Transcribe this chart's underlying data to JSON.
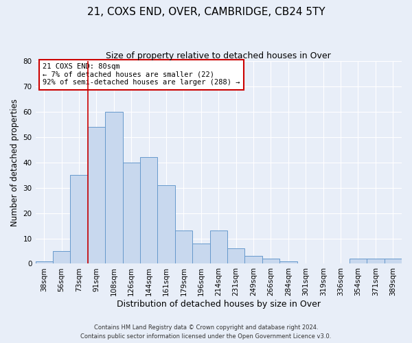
{
  "title1": "21, COXS END, OVER, CAMBRIDGE, CB24 5TY",
  "title2": "Size of property relative to detached houses in Over",
  "xlabel": "Distribution of detached houses by size in Over",
  "ylabel": "Number of detached properties",
  "categories": [
    "38sqm",
    "56sqm",
    "73sqm",
    "91sqm",
    "108sqm",
    "126sqm",
    "144sqm",
    "161sqm",
    "179sqm",
    "196sqm",
    "214sqm",
    "231sqm",
    "249sqm",
    "266sqm",
    "284sqm",
    "301sqm",
    "319sqm",
    "336sqm",
    "354sqm",
    "371sqm",
    "389sqm"
  ],
  "values": [
    1,
    5,
    35,
    54,
    60,
    40,
    42,
    31,
    13,
    8,
    13,
    6,
    3,
    2,
    1,
    0,
    0,
    0,
    2,
    2,
    2
  ],
  "bar_color": "#c8d8ee",
  "bar_edge_color": "#6699cc",
  "bar_width": 1.0,
  "vline_x": 2.5,
  "vline_color": "#cc0000",
  "ylim": [
    0,
    80
  ],
  "yticks": [
    0,
    10,
    20,
    30,
    40,
    50,
    60,
    70,
    80
  ],
  "annotation_title": "21 COXS END: 80sqm",
  "annotation_line1": "← 7% of detached houses are smaller (22)",
  "annotation_line2": "92% of semi-detached houses are larger (288) →",
  "annotation_box_color": "#ffffff",
  "annotation_box_edge_color": "#cc0000",
  "footer1": "Contains HM Land Registry data © Crown copyright and database right 2024.",
  "footer2": "Contains public sector information licensed under the Open Government Licence v3.0.",
  "background_color": "#e8eef8",
  "grid_color": "#ffffff",
  "title1_fontsize": 11,
  "title2_fontsize": 9,
  "xlabel_fontsize": 9,
  "ylabel_fontsize": 8.5,
  "tick_fontsize": 7.5,
  "footer_fontsize": 6,
  "ann_fontsize": 7.5
}
